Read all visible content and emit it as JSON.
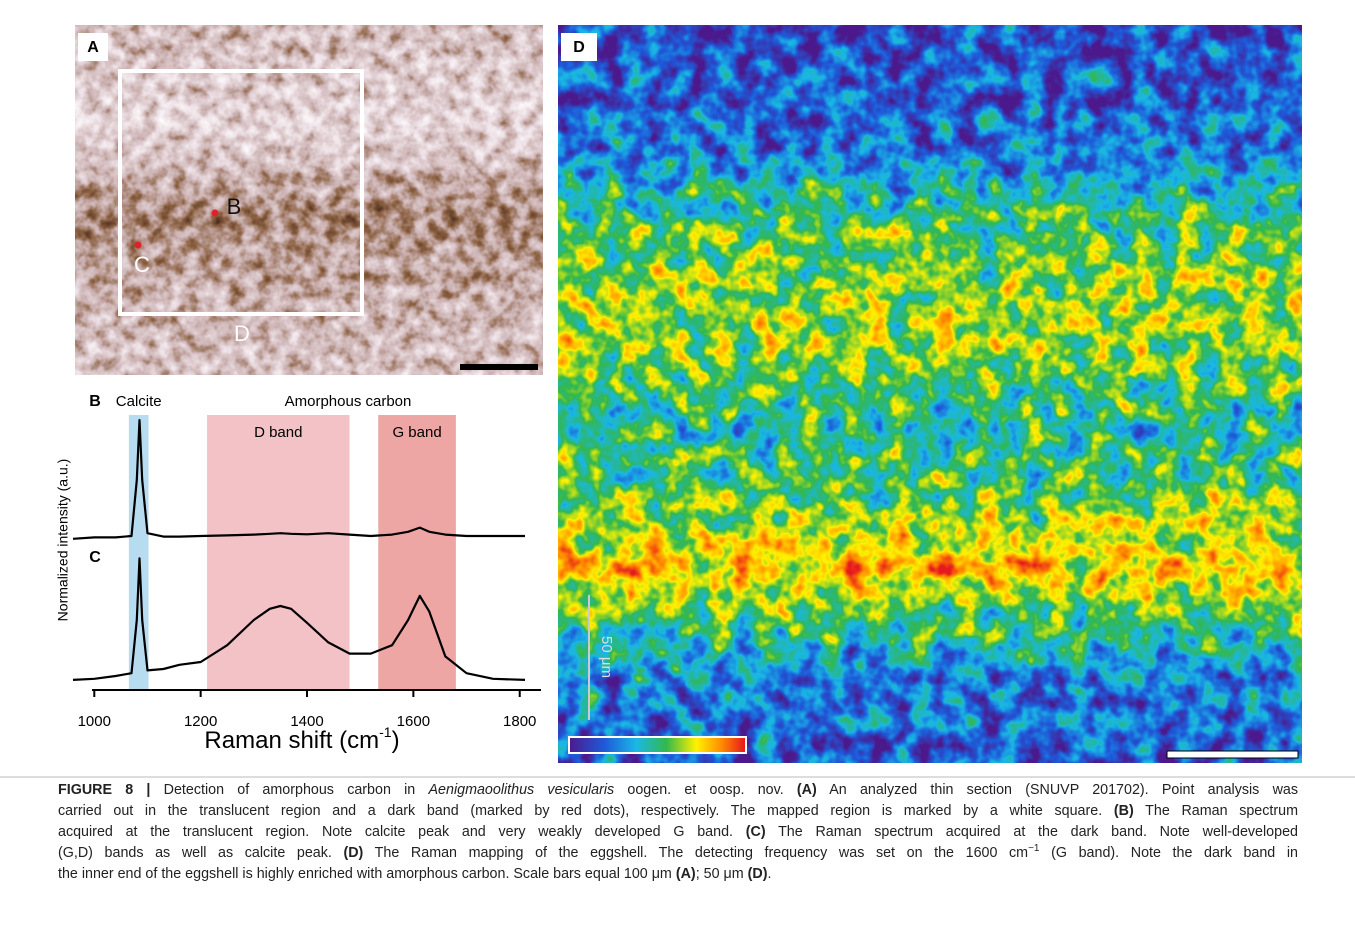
{
  "panels": {
    "A": {
      "label": "A",
      "markers": [
        "B",
        "C",
        "D"
      ]
    },
    "D": {
      "label": "D",
      "scale_label": "50 μm"
    }
  },
  "chart_data": {
    "type": "line",
    "ylabel": "Normalized intensity (a.u.)",
    "xlabel": "Raman shift (cm",
    "xlabel_sup": "-1",
    "xlabel_end": ")",
    "group_label": "Amorphous carbon",
    "bands": [
      {
        "label": "Calcite",
        "range": [
          1065,
          1102
        ],
        "color": "#b8dcef"
      },
      {
        "label": "D band",
        "range": [
          1212,
          1480
        ],
        "color": "#f3c2c7"
      },
      {
        "label": "G band",
        "range": [
          1534,
          1680
        ],
        "color": "#eea6a4"
      }
    ],
    "x": [
      960,
      1000,
      1040,
      1070,
      1080,
      1085,
      1090,
      1100,
      1130,
      1160,
      1200,
      1250,
      1300,
      1330,
      1350,
      1370,
      1400,
      1440,
      1480,
      1520,
      1560,
      1590,
      1612,
      1630,
      1660,
      1700,
      1750,
      1810
    ],
    "series": [
      {
        "name": "B",
        "color": "#000000",
        "values": [
          0.54,
          0.545,
          0.545,
          0.55,
          0.75,
          0.964,
          0.75,
          0.56,
          0.548,
          0.548,
          0.55,
          0.552,
          0.555,
          0.558,
          0.56,
          0.558,
          0.556,
          0.56,
          0.555,
          0.55,
          0.555,
          0.565,
          0.58,
          0.565,
          0.555,
          0.55,
          0.55,
          0.55
        ]
      },
      {
        "name": "C",
        "color": "#000000",
        "values": [
          0.036,
          0.04,
          0.05,
          0.06,
          0.25,
          0.47,
          0.25,
          0.07,
          0.075,
          0.09,
          0.1,
          0.16,
          0.25,
          0.29,
          0.3,
          0.29,
          0.24,
          0.17,
          0.13,
          0.13,
          0.16,
          0.25,
          0.336,
          0.28,
          0.12,
          0.06,
          0.04,
          0.036
        ]
      }
    ],
    "xlim": [
      975,
      1840
    ],
    "xticks": [
      1000,
      1200,
      1400,
      1600,
      1800
    ],
    "ylim": [
      0,
      1
    ]
  },
  "caption": {
    "lines": [
      [
        {
          "bold": "FIGURE 8 |"
        },
        " Detection of amorphous carbon in ",
        {
          "italic": "Aenigmaoolithus vesicularis"
        },
        " oogen. et oosp. nov. ",
        {
          "bold": "(A)"
        },
        " An analyzed thin section (SNUVP 201702). Point analysis was"
      ],
      [
        "carried out in the translucent region and a dark band (marked by red dots), respectively. The mapped region is marked by a white square. ",
        {
          "bold": "(B)"
        },
        " The Raman spectrum"
      ],
      [
        "acquired at the translucent region. Note calcite peak and very weakly developed G band. ",
        {
          "bold": "(C)"
        },
        " The Raman spectrum acquired at the dark band. Note well-developed"
      ],
      [
        "(G,D) bands as well as calcite peak. ",
        {
          "bold": "(D)"
        },
        " The Raman mapping of the eggshell. The detecting frequency was set on the 1600 cm",
        {
          "sup": "−1"
        },
        " (G band). Note the dark band in"
      ],
      [
        "the inner end of the eggshell is highly enriched with amorphous carbon. Scale bars equal 100 μm ",
        {
          "bold": "(A)"
        },
        "; 50 μm ",
        {
          "bold": "(D)"
        },
        "."
      ]
    ]
  }
}
